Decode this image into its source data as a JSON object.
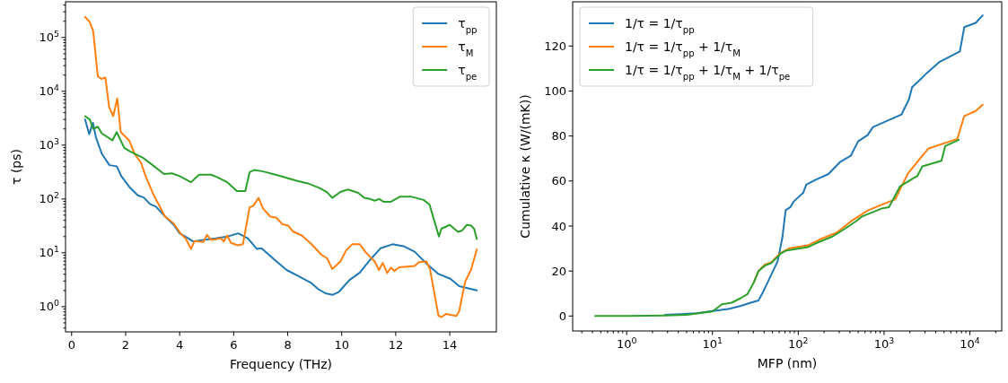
{
  "chart_data": [
    {
      "type": "line",
      "xlabel": "Frequency (THz)",
      "ylabel": "τ (ps)",
      "log": "y",
      "legend": "top right",
      "xlim": [
        -0.225,
        15.725
      ],
      "ylim": [
        0.34,
        460000
      ],
      "xticks": [
        0,
        2,
        4,
        6,
        8,
        10,
        12,
        14
      ],
      "yticks": [
        {
          "value": 1,
          "label": "10$^{0}$"
        },
        {
          "value": 10,
          "label": "10$^{1}$"
        },
        {
          "value": 100,
          "label": "10$^{2}$"
        },
        {
          "value": 1000,
          "label": "10$^{3}$"
        },
        {
          "value": 10000,
          "label": "10$^{4}$"
        },
        {
          "value": 100000,
          "label": "10$^{5}$"
        },
        {
          "value": 0.4,
          "label": null
        },
        {
          "value": 0.5,
          "label": null
        },
        {
          "value": 0.6,
          "label": null
        },
        {
          "value": 0.7,
          "label": null
        },
        {
          "value": 0.8,
          "label": null
        },
        {
          "value": 0.9,
          "label": null
        },
        {
          "value": 2,
          "label": null
        },
        {
          "value": 3,
          "label": null
        },
        {
          "value": 4,
          "label": null
        },
        {
          "value": 5,
          "label": null
        },
        {
          "value": 6,
          "label": null
        },
        {
          "value": 7,
          "label": null
        },
        {
          "value": 8,
          "label": null
        },
        {
          "value": 9,
          "label": null
        },
        {
          "value": 20,
          "label": null
        },
        {
          "value": 30,
          "label": null
        },
        {
          "value": 40,
          "label": null
        },
        {
          "value": 50,
          "label": null
        },
        {
          "value": 60,
          "label": null
        },
        {
          "value": 70,
          "label": null
        },
        {
          "value": 80,
          "label": null
        },
        {
          "value": 90,
          "label": null
        },
        {
          "value": 200,
          "label": null
        },
        {
          "value": 300,
          "label": null
        },
        {
          "value": 400,
          "label": null
        },
        {
          "value": 500,
          "label": null
        },
        {
          "value": 600,
          "label": null
        },
        {
          "value": 700,
          "label": null
        },
        {
          "value": 800,
          "label": null
        },
        {
          "value": 900,
          "label": null
        },
        {
          "value": 2000,
          "label": null
        },
        {
          "value": 3000,
          "label": null
        },
        {
          "value": 4000,
          "label": null
        },
        {
          "value": 5000,
          "label": null
        },
        {
          "value": 6000,
          "label": null
        },
        {
          "value": 7000,
          "label": null
        },
        {
          "value": 8000,
          "label": null
        },
        {
          "value": 9000,
          "label": null
        },
        {
          "value": 20000,
          "label": null
        },
        {
          "value": 30000,
          "label": null
        },
        {
          "value": 40000,
          "label": null
        },
        {
          "value": 50000,
          "label": null
        },
        {
          "value": 60000,
          "label": null
        },
        {
          "value": 70000,
          "label": null
        },
        {
          "value": 80000,
          "label": null
        },
        {
          "value": 90000,
          "label": null
        },
        {
          "value": 200000,
          "label": null
        },
        {
          "value": 300000,
          "label": null
        },
        {
          "value": 400000,
          "label": null
        }
      ],
      "series": [
        {
          "name": "τ$_{pp}$",
          "color": "#1f77b4",
          "x": [
            0.5,
            0.65,
            0.79,
            0.9,
            1.12,
            1.4,
            1.67,
            1.84,
            2.17,
            2.45,
            2.68,
            2.9,
            3.12,
            3.45,
            3.78,
            4.0,
            4.22,
            4.5,
            4.88,
            5.33,
            5.76,
            6.17,
            6.53,
            6.86,
            7.03,
            7.52,
            7.96,
            8.4,
            8.85,
            9.12,
            9.4,
            9.67,
            9.9,
            10.28,
            10.67,
            11.05,
            11.44,
            11.88,
            12.32,
            12.7,
            13.14,
            13.58,
            14.02,
            14.35,
            15.0
          ],
          "values": [
            3000,
            1600,
            2600,
            1400,
            690,
            425,
            405,
            265,
            160,
            117,
            106,
            81,
            72,
            48,
            33,
            23,
            20,
            16.3,
            17.4,
            18.5,
            20,
            23,
            18.5,
            11.8,
            12.2,
            7.4,
            4.8,
            3.7,
            2.8,
            2.14,
            1.77,
            1.66,
            1.89,
            3.1,
            4.3,
            7.4,
            12.2,
            14.4,
            13.1,
            10.5,
            6.3,
            4.05,
            3.3,
            2.4,
            2.0
          ]
        },
        {
          "name": "τ$_{M}$",
          "color": "#ff7f0e",
          "x": [
            0.5,
            0.67,
            0.8,
            0.97,
            1.1,
            1.25,
            1.39,
            1.54,
            1.69,
            1.82,
            2.13,
            2.33,
            2.57,
            2.74,
            3.02,
            3.45,
            3.78,
            4.0,
            4.22,
            4.42,
            4.55,
            4.88,
            5.01,
            5.16,
            5.54,
            5.63,
            5.76,
            5.9,
            6.15,
            6.34,
            6.59,
            6.73,
            6.92,
            7.09,
            7.36,
            7.58,
            7.8,
            8.02,
            8.19,
            8.52,
            8.85,
            9.24,
            9.46,
            9.65,
            9.95,
            10.17,
            10.39,
            10.67,
            10.89,
            11.22,
            11.38,
            11.52,
            11.68,
            11.82,
            11.95,
            12.13,
            12.7,
            12.86,
            13.14,
            13.27,
            13.58,
            13.69,
            13.86,
            14.24,
            14.35,
            14.57,
            14.79,
            15.0
          ],
          "values": [
            240000,
            195000,
            130000,
            19000,
            17000,
            18000,
            5100,
            3450,
            7400,
            1750,
            1230,
            690,
            470,
            265,
            124,
            48,
            35,
            24,
            18.5,
            11.8,
            16.5,
            15.9,
            21.5,
            17.4,
            18.5,
            16.3,
            21,
            15.3,
            13.8,
            14.4,
            70,
            75,
            105,
            66,
            47,
            45,
            34,
            32,
            25,
            21,
            15,
            9.3,
            7.9,
            5.0,
            6.9,
            11.2,
            14.4,
            14.4,
            10.2,
            6.9,
            4.8,
            6.5,
            4.2,
            5.3,
            4.6,
            5.4,
            5.7,
            6.7,
            6.9,
            4.9,
            0.68,
            0.64,
            0.73,
            0.67,
            0.83,
            2.9,
            4.9,
            11.6
          ]
        },
        {
          "name": "τ$_{pe}$",
          "color": "#2ca02c",
          "x": [
            0.5,
            0.67,
            0.8,
            0.97,
            1.12,
            1.51,
            1.67,
            1.95,
            2.17,
            2.67,
            3.0,
            3.42,
            3.72,
            4.0,
            4.42,
            4.72,
            5.16,
            5.38,
            5.76,
            6.12,
            6.43,
            6.59,
            6.76,
            7.09,
            7.64,
            8.3,
            8.74,
            9.18,
            9.46,
            9.65,
            9.95,
            10.23,
            10.61,
            10.83,
            11.05,
            11.22,
            11.38,
            11.55,
            11.82,
            12.15,
            12.59,
            13.03,
            13.25,
            13.6,
            13.69,
            14.0,
            14.13,
            14.3,
            14.46,
            14.63,
            14.79,
            14.9,
            15.0
          ],
          "values": [
            3450,
            3000,
            2000,
            2200,
            1650,
            1230,
            1750,
            890,
            760,
            570,
            425,
            290,
            300,
            265,
            205,
            283,
            283,
            255,
            205,
            140,
            140,
            315,
            345,
            325,
            275,
            220,
            195,
            160,
            133,
            105,
            135,
            150,
            130,
            105,
            100,
            93,
            100,
            89,
            89,
            110,
            110,
            96,
            79,
            20,
            28,
            33,
            29,
            24.5,
            26,
            33,
            32,
            28,
            18
          ]
        }
      ]
    },
    {
      "type": "line",
      "xlabel": "MFP (nm)",
      "ylabel": "Cumulative κ (W/(mK))",
      "log": "x",
      "legend": "top left",
      "xlim": [
        0.235,
        23500
      ],
      "ylim": [
        -6.65,
        139.65
      ],
      "xticks": [
        {
          "value": 1,
          "label": "10$^{0}$"
        },
        {
          "value": 10,
          "label": "10$^{1}$"
        },
        {
          "value": 100,
          "label": "10$^{2}$"
        },
        {
          "value": 1000,
          "label": "10$^{3}$"
        },
        {
          "value": 10000,
          "label": "10$^{4}$"
        },
        {
          "value": 0.3,
          "label": null
        },
        {
          "value": 0.4,
          "label": null
        },
        {
          "value": 0.5,
          "label": null
        },
        {
          "value": 0.6,
          "label": null
        },
        {
          "value": 0.7,
          "label": null
        },
        {
          "value": 0.8,
          "label": null
        },
        {
          "value": 0.9,
          "label": null
        },
        {
          "value": 2,
          "label": null
        },
        {
          "value": 3,
          "label": null
        },
        {
          "value": 4,
          "label": null
        },
        {
          "value": 5,
          "label": null
        },
        {
          "value": 6,
          "label": null
        },
        {
          "value": 7,
          "label": null
        },
        {
          "value": 8,
          "label": null
        },
        {
          "value": 9,
          "label": null
        },
        {
          "value": 20,
          "label": null
        },
        {
          "value": 30,
          "label": null
        },
        {
          "value": 40,
          "label": null
        },
        {
          "value": 50,
          "label": null
        },
        {
          "value": 60,
          "label": null
        },
        {
          "value": 70,
          "label": null
        },
        {
          "value": 80,
          "label": null
        },
        {
          "value": 90,
          "label": null
        },
        {
          "value": 200,
          "label": null
        },
        {
          "value": 300,
          "label": null
        },
        {
          "value": 400,
          "label": null
        },
        {
          "value": 500,
          "label": null
        },
        {
          "value": 600,
          "label": null
        },
        {
          "value": 700,
          "label": null
        },
        {
          "value": 800,
          "label": null
        },
        {
          "value": 900,
          "label": null
        },
        {
          "value": 2000,
          "label": null
        },
        {
          "value": 3000,
          "label": null
        },
        {
          "value": 4000,
          "label": null
        },
        {
          "value": 5000,
          "label": null
        },
        {
          "value": 6000,
          "label": null
        },
        {
          "value": 7000,
          "label": null
        },
        {
          "value": 8000,
          "label": null
        },
        {
          "value": 9000,
          "label": null
        },
        {
          "value": 20000,
          "label": null
        }
      ],
      "yticks": [
        0,
        20,
        40,
        60,
        80,
        100,
        120
      ],
      "series": [
        {
          "name": "1/τ = 1/τ$_{pp}$",
          "color": "#1f77b4",
          "x": [
            2.8,
            6.5,
            10,
            15.3,
            21.5,
            27.9,
            34.4,
            39,
            44.5,
            49.8,
            57.5,
            65.3,
            71.3,
            81,
            88,
            114,
            124,
            160,
            225,
            304,
            409,
            498,
            643,
            743,
            1600,
            1950,
            2120,
            2790,
            3170,
            4460,
            7640,
            8610,
            11700,
            14100
          ],
          "values": [
            0.5,
            1.2,
            2.2,
            3.1,
            4.5,
            5.9,
            6.9,
            10.8,
            15.3,
            19.3,
            24.3,
            34.9,
            47,
            48.4,
            50.8,
            54.7,
            58.4,
            60.6,
            63.1,
            68.3,
            71.2,
            77.6,
            80.4,
            84,
            89.6,
            96.3,
            101.7,
            106,
            108.1,
            113,
            117.6,
            128.4,
            130.3,
            133.6
          ]
        },
        {
          "name": "1/τ = 1/τ$_{pp}$ + 1/τ$_{M}$",
          "color": "#ff7f0e",
          "x": [
            30.4,
            34.4,
            40.8,
            48.5,
            62.7,
            77.6,
            129,
            182,
            279,
            409,
            653,
            1350,
            1900,
            2790,
            3310,
            7130,
            8610,
            11700,
            14100
          ],
          "values": [
            15,
            20,
            22.9,
            23.9,
            28.1,
            30,
            31.4,
            34.2,
            37,
            42,
            47,
            51.9,
            63.4,
            71.2,
            74.5,
            78.7,
            88.9,
            91.1,
            93.9
          ]
        },
        {
          "name": "1/τ = 1/τ$_{pp}$ + 1/τ$_{M}$ + 1/τ$_{pe}$",
          "color": "#2ca02c",
          "x": [
            0.43,
            1,
            2.8,
            5,
            10,
            12.9,
            16.7,
            21.5,
            25.6,
            30.4,
            34.4,
            40.8,
            48.5,
            62.7,
            71.3,
            129,
            160,
            250,
            331,
            466,
            552,
            960,
            1140,
            1540,
            2450,
            2790,
            4660,
            5160,
            7430
          ],
          "values": [
            0,
            0,
            0.2,
            0.5,
            2,
            5.2,
            5.9,
            8,
            9.7,
            15,
            20,
            22.4,
            23.5,
            27.8,
            29,
            30.6,
            32.3,
            35.3,
            38.2,
            42,
            44.2,
            47.9,
            48.4,
            57.7,
            62.3,
            66.5,
            69,
            75.5,
            78.3
          ]
        }
      ]
    }
  ]
}
